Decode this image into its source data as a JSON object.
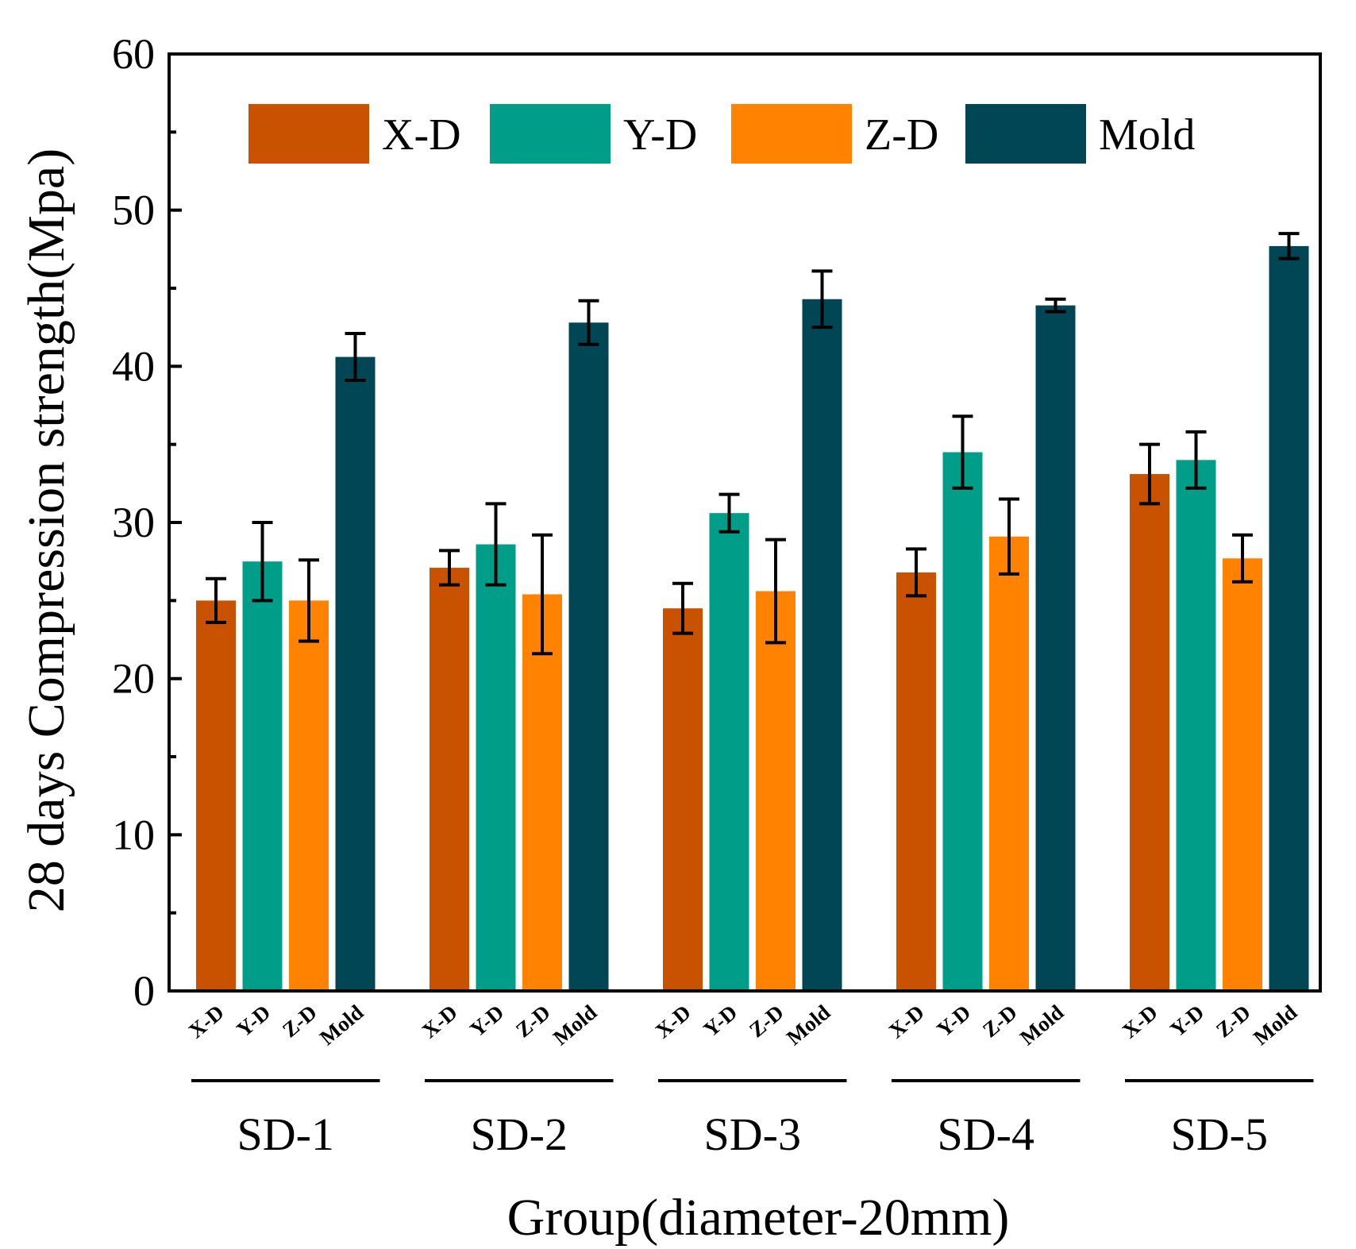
{
  "chart_data": {
    "type": "bar",
    "title": "",
    "xlabel": "Group(diameter-20mm)",
    "ylabel": "28 days Compression strength(Mpa)",
    "ylim": [
      0,
      60
    ],
    "yticks": [
      "0",
      "10",
      "20",
      "30",
      "40",
      "50",
      "60"
    ],
    "yticks_values": [
      0,
      10,
      20,
      30,
      40,
      50,
      60
    ],
    "categories": [
      "SD-1",
      "SD-2",
      "SD-3",
      "SD-4",
      "SD-5"
    ],
    "sub_categories": [
      "X-D",
      "Y-D",
      "Z-D",
      "Mold"
    ],
    "legend_position": "top",
    "grid": false,
    "series": [
      {
        "name": "X-D",
        "color": "#C85200",
        "values": [
          25.0,
          27.1,
          24.5,
          26.8,
          33.1
        ],
        "errors": [
          1.4,
          1.1,
          1.6,
          1.5,
          1.9
        ]
      },
      {
        "name": "Y-D",
        "color": "#009E88",
        "values": [
          27.5,
          28.6,
          30.6,
          34.5,
          34.0
        ],
        "errors": [
          2.5,
          2.6,
          1.2,
          2.3,
          1.8
        ]
      },
      {
        "name": "Z-D",
        "color": "#FF8200",
        "values": [
          25.0,
          25.4,
          25.6,
          29.1,
          27.7
        ],
        "errors": [
          2.6,
          3.8,
          3.3,
          2.4,
          1.5
        ]
      },
      {
        "name": "Mold",
        "color": "#004655",
        "values": [
          40.6,
          42.8,
          44.3,
          43.9,
          47.7
        ],
        "errors": [
          1.5,
          1.4,
          1.8,
          0.4,
          0.8
        ]
      }
    ]
  }
}
